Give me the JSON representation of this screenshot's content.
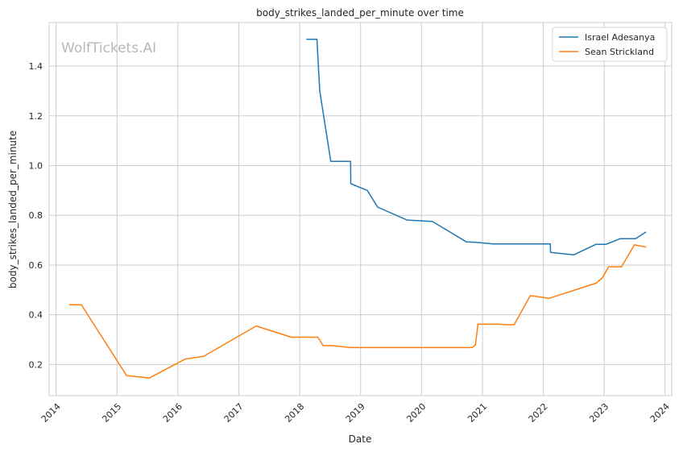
{
  "chart_data": {
    "type": "line",
    "title": "body_strikes_landed_per_minute over time",
    "xlabel": "Date",
    "ylabel": "body_strikes_landed_per_minute",
    "watermark": "WolfTickets.AI",
    "x_type": "date",
    "xlim": [
      "2013-11-20",
      "2024-02-10"
    ],
    "ylim": [
      0.075,
      1.575
    ],
    "x_ticks": [
      "2014",
      "2015",
      "2016",
      "2017",
      "2018",
      "2019",
      "2020",
      "2021",
      "2022",
      "2023",
      "2024"
    ],
    "y_ticks": [
      "0.2",
      "0.4",
      "0.6",
      "0.8",
      "1.0",
      "1.2",
      "1.4"
    ],
    "grid": true,
    "legend_position": "top-right",
    "series": [
      {
        "name": "Israel Adesanya",
        "color": "#1f77b4",
        "points": [
          [
            "2018-02-10",
            1.508
          ],
          [
            "2018-04-14",
            1.508
          ],
          [
            "2018-05-01",
            1.3
          ],
          [
            "2018-07-06",
            1.017
          ],
          [
            "2018-11-02",
            1.017
          ],
          [
            "2018-11-03",
            0.927
          ],
          [
            "2019-02-10",
            0.9
          ],
          [
            "2019-04-13",
            0.833
          ],
          [
            "2019-10-06",
            0.781
          ],
          [
            "2020-03-07",
            0.775
          ],
          [
            "2020-09-26",
            0.693
          ],
          [
            "2020-11-15",
            0.692
          ],
          [
            "2021-03-06",
            0.685
          ],
          [
            "2022-02-12",
            0.685
          ],
          [
            "2022-02-13",
            0.651
          ],
          [
            "2022-07-02",
            0.641
          ],
          [
            "2022-11-12",
            0.683
          ],
          [
            "2023-01-10",
            0.683
          ],
          [
            "2023-04-08",
            0.706
          ],
          [
            "2023-07-08",
            0.706
          ],
          [
            "2023-09-09",
            0.733
          ]
        ]
      },
      {
        "name": "Sean Strickland",
        "color": "#ff7f0e",
        "points": [
          [
            "2014-03-20",
            0.44
          ],
          [
            "2014-06-01",
            0.44
          ],
          [
            "2015-02-28",
            0.155
          ],
          [
            "2015-07-15",
            0.146
          ],
          [
            "2016-02-15",
            0.222
          ],
          [
            "2016-06-04",
            0.233
          ],
          [
            "2017-04-15",
            0.355
          ],
          [
            "2017-11-11",
            0.31
          ],
          [
            "2018-04-20",
            0.31
          ],
          [
            "2018-05-21",
            0.276
          ],
          [
            "2018-07-14",
            0.276
          ],
          [
            "2018-11-03",
            0.268
          ],
          [
            "2020-10-31",
            0.268
          ],
          [
            "2020-11-20",
            0.279
          ],
          [
            "2020-12-05",
            0.362
          ],
          [
            "2021-04-01",
            0.362
          ],
          [
            "2021-06-05",
            0.36
          ],
          [
            "2021-07-10",
            0.36
          ],
          [
            "2021-10-15",
            0.477
          ],
          [
            "2022-02-04",
            0.466
          ],
          [
            "2022-11-13",
            0.527
          ],
          [
            "2022-12-20",
            0.548
          ],
          [
            "2023-01-28",
            0.593
          ],
          [
            "2023-04-15",
            0.593
          ],
          [
            "2023-07-01",
            0.681
          ],
          [
            "2023-09-10",
            0.672
          ]
        ]
      }
    ]
  }
}
